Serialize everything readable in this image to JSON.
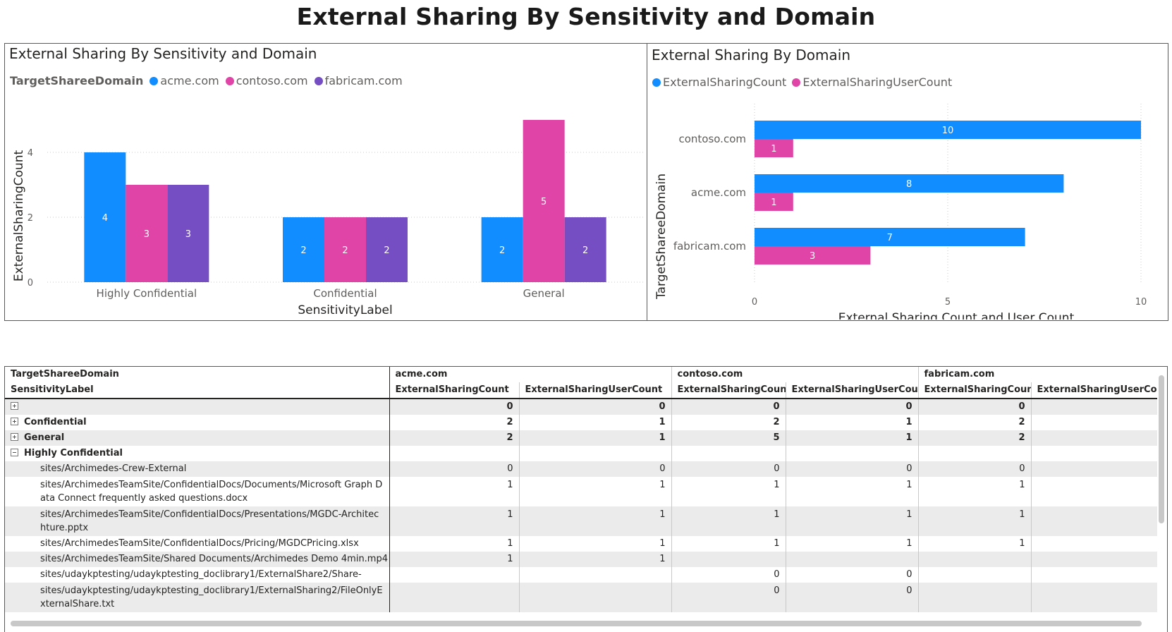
{
  "page": {
    "title": "External Sharing By Sensitivity and Domain"
  },
  "colors": {
    "acme": "#118DFF",
    "contoso": "#E044A7",
    "fabricam": "#744EC2",
    "count": "#118DFF",
    "user_count": "#E044A7"
  },
  "chart_left": {
    "title": "External Sharing By Sensitivity and Domain",
    "legend_title": "TargetShareeDomain"
  },
  "chart_right": {
    "title": "External Sharing By Domain"
  },
  "chart_data": [
    {
      "type": "bar",
      "title": "External Sharing By Sensitivity and Domain",
      "xlabel": "SensitivityLabel",
      "ylabel": "ExternalSharingCount",
      "categories": [
        "Highly Confidential",
        "Confidential",
        "General"
      ],
      "series": [
        {
          "name": "acme.com",
          "values": [
            4,
            2,
            2
          ]
        },
        {
          "name": "contoso.com",
          "values": [
            3,
            2,
            5
          ]
        },
        {
          "name": "fabricam.com",
          "values": [
            3,
            2,
            2
          ]
        }
      ],
      "ylim": [
        0,
        5
      ],
      "yticks": [
        0,
        2,
        4
      ],
      "grid": true,
      "legend": "top-left"
    },
    {
      "type": "bar",
      "orientation": "horizontal",
      "title": "External Sharing By Domain",
      "xlabel": "External Sharing Count and User Count",
      "ylabel": "TargetShareeDomain",
      "categories": [
        "contoso.com",
        "acme.com",
        "fabricam.com"
      ],
      "series": [
        {
          "name": "ExternalSharingCount",
          "values": [
            10,
            8,
            7
          ]
        },
        {
          "name": "ExternalSharingUserCount",
          "values": [
            1,
            1,
            3
          ]
        }
      ],
      "xlim": [
        0,
        10
      ],
      "xticks": [
        0,
        5,
        10
      ],
      "grid": true,
      "legend": "top-left"
    }
  ],
  "matrix": {
    "row_header_1": "TargetShareeDomain",
    "row_header_2": "SensitivityLabel",
    "domains": [
      "acme.com",
      "contoso.com",
      "fabricam.com"
    ],
    "measures": [
      "ExternalSharingCount",
      "ExternalSharingUserCount",
      "ExternalSharingCount",
      "ExternalSharingUserCount",
      "ExternalSharingCount",
      "ExternalSharingUserCour"
    ],
    "rows": [
      {
        "label": "",
        "toggle": "plus",
        "bold": true,
        "indent": false,
        "values": [
          "0",
          "0",
          "0",
          "0",
          "0",
          ""
        ]
      },
      {
        "label": "Confidential",
        "toggle": "plus",
        "bold": true,
        "indent": false,
        "values": [
          "2",
          "1",
          "2",
          "1",
          "2",
          ""
        ]
      },
      {
        "label": "General",
        "toggle": "plus",
        "bold": true,
        "indent": false,
        "values": [
          "2",
          "1",
          "5",
          "1",
          "2",
          ""
        ]
      },
      {
        "label": "Highly Confidential",
        "toggle": "minus",
        "bold": true,
        "indent": false,
        "values": [
          "",
          "",
          "",
          "",
          "",
          ""
        ]
      },
      {
        "label": "sites/Archimedes-Crew-External",
        "toggle": "",
        "bold": false,
        "indent": true,
        "values": [
          "0",
          "0",
          "0",
          "0",
          "0",
          ""
        ]
      },
      {
        "label": "sites/ArchimedesTeamSite/ConfidentialDocs/Documents/Microsoft Graph Data Connect frequently asked questions.docx",
        "toggle": "",
        "bold": false,
        "indent": true,
        "tall": true,
        "values": [
          "1",
          "1",
          "1",
          "1",
          "1",
          ""
        ]
      },
      {
        "label": "sites/ArchimedesTeamSite/ConfidentialDocs/Presentations/MGDC-Architechture.pptx",
        "toggle": "",
        "bold": false,
        "indent": true,
        "tall": true,
        "values": [
          "1",
          "1",
          "1",
          "1",
          "1",
          ""
        ]
      },
      {
        "label": "sites/ArchimedesTeamSite/ConfidentialDocs/Pricing/MGDCPricing.xlsx",
        "toggle": "",
        "bold": false,
        "indent": true,
        "values": [
          "1",
          "1",
          "1",
          "1",
          "1",
          ""
        ]
      },
      {
        "label": "sites/ArchimedesTeamSite/Shared Documents/Archimedes Demo 4min.mp4",
        "toggle": "",
        "bold": false,
        "indent": true,
        "values": [
          "1",
          "1",
          "",
          "",
          "",
          ""
        ]
      },
      {
        "label": "sites/udaykptesting/udaykptesting_doclibrary1/ExternalShare2/Share-",
        "toggle": "",
        "bold": false,
        "indent": true,
        "values": [
          "",
          "",
          "0",
          "0",
          "",
          ""
        ]
      },
      {
        "label": "sites/udaykptesting/udaykptesting_doclibrary1/ExternalSharing2/FileOnlyExternalShare.txt",
        "toggle": "",
        "bold": false,
        "indent": true,
        "tall": true,
        "values": [
          "",
          "",
          "0",
          "0",
          "",
          ""
        ]
      }
    ]
  }
}
